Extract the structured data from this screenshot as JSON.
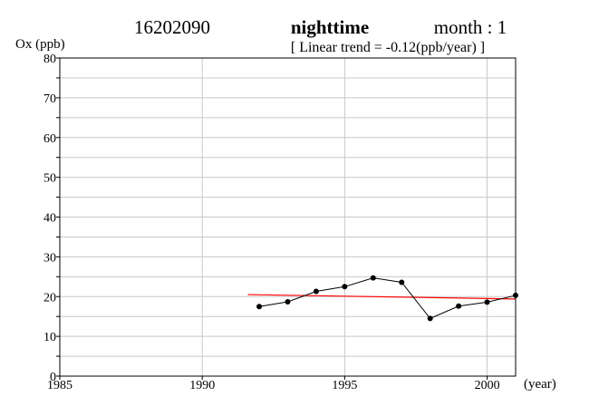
{
  "header": {
    "station": "16202090",
    "period": "nighttime",
    "month": "month : 1",
    "trend_text": "[ Linear trend = -0.12(ppb/year) ]"
  },
  "chart_data": {
    "type": "line",
    "ylabel": "Ox (ppb)",
    "xlabel": "(year)",
    "xlim": [
      1985,
      2001
    ],
    "ylim": [
      0,
      80
    ],
    "xticks": [
      1985,
      1990,
      1995,
      2000
    ],
    "yticks": [
      0,
      10,
      20,
      30,
      40,
      50,
      60,
      70,
      80
    ],
    "grid": true,
    "series": [
      {
        "x": [
          1992,
          1993,
          1994,
          1995,
          1996,
          1997,
          1998,
          1999,
          2000,
          2001
        ],
        "values": [
          17.5,
          18.7,
          21.3,
          22.5,
          24.7,
          23.6,
          14.5,
          17.6,
          18.6,
          20.3
        ],
        "color": "#000000",
        "markers": true
      }
    ],
    "trend_line": {
      "x": [
        1991.6,
        2001
      ],
      "values": [
        20.5,
        19.4
      ],
      "color": "#ff0000"
    }
  }
}
